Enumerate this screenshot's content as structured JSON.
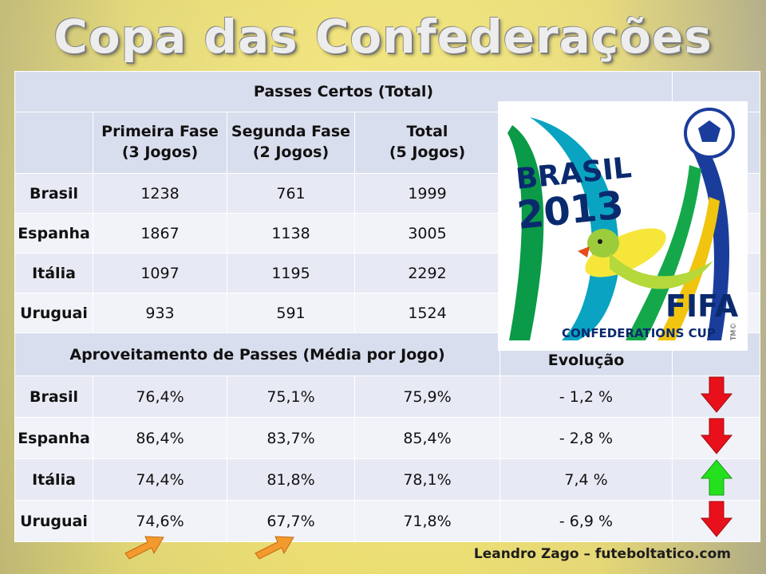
{
  "title": "Copa das Confederações 2013",
  "table": {
    "section1_title": "Passes Certos (Total)",
    "columns": [
      "",
      "Primeira Fase\n(3 Jogos)",
      "Segunda Fase\n(2 Jogos)",
      "Total\n(5 Jogos)"
    ],
    "passes_rows": [
      {
        "team": "Brasil",
        "values": [
          "1238",
          "761",
          "1999"
        ]
      },
      {
        "team": "Espanha",
        "values": [
          "1867",
          "1138",
          "3005"
        ]
      },
      {
        "team": "Itália",
        "values": [
          "1097",
          "1195",
          "2292"
        ]
      },
      {
        "team": "Uruguai",
        "values": [
          "933",
          "591",
          "1524"
        ]
      }
    ],
    "section2_title": "Aproveitamento de Passes (Média por Jogo)",
    "evolution_header": "Evolução",
    "accuracy_rows": [
      {
        "team": "Brasil",
        "values": [
          "76,4%",
          "75,1%",
          "75,9%"
        ],
        "evolution": "- 1,2 %",
        "trend": "down"
      },
      {
        "team": "Espanha",
        "values": [
          "86,4%",
          "83,7%",
          "85,4%"
        ],
        "evolution": "- 2,8 %",
        "trend": "down"
      },
      {
        "team": "Itália",
        "values": [
          "74,4%",
          "81,8%",
          "78,1%"
        ],
        "evolution": "7,4 %",
        "trend": "up"
      },
      {
        "team": "Uruguai",
        "values": [
          "74,6%",
          "67,7%",
          "71,8%"
        ],
        "evolution": "- 6,9 %",
        "trend": "down"
      }
    ]
  },
  "logo": {
    "brand": "BRASIL",
    "year": "2013",
    "org": "FIFA",
    "event": "CONFEDERATIONS CUP",
    "tm": "TM©"
  },
  "signature": "Leandro  Zago – futeboltatico.com",
  "colors": {
    "down_arrow": "#e8101a",
    "up_arrow": "#25e01d",
    "highlight_arrow": "#f29a2e"
  }
}
